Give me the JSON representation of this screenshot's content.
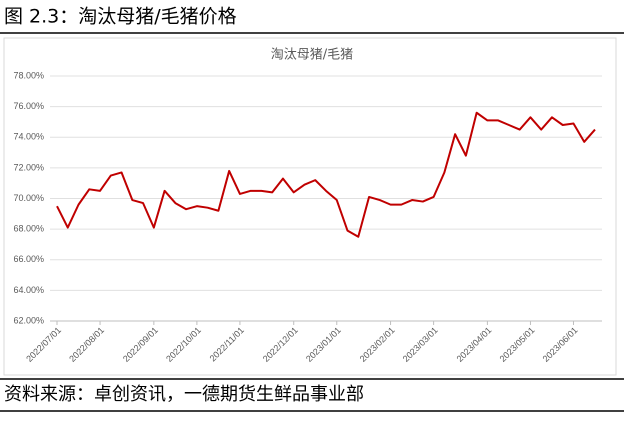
{
  "caption": "图 2.3：淘汰母猪/毛猪价格",
  "source": "资料来源：卓创资讯，一德期货生鲜品事业部",
  "chart_data": {
    "type": "line",
    "title": "淘汰母猪/毛猪",
    "categories": [
      "2022/07/01",
      null,
      null,
      null,
      "2022/08/01",
      null,
      null,
      null,
      null,
      "2022/09/01",
      null,
      null,
      null,
      "2022/10/01",
      null,
      null,
      null,
      "2022/11/01",
      null,
      null,
      null,
      null,
      "2022/12/01",
      null,
      null,
      null,
      "2023/01/01",
      null,
      null,
      null,
      null,
      "2023/02/01",
      null,
      null,
      null,
      "2023/03/01",
      null,
      null,
      null,
      null,
      "2023/04/01",
      null,
      null,
      null,
      "2023/05/01",
      null,
      null,
      null,
      "2023/06/01",
      null,
      null
    ],
    "values": [
      69.5,
      68.1,
      69.6,
      70.6,
      70.5,
      71.5,
      71.7,
      69.9,
      69.7,
      68.1,
      70.5,
      69.7,
      69.3,
      69.5,
      69.4,
      69.2,
      71.8,
      70.3,
      70.5,
      70.5,
      70.4,
      71.3,
      70.4,
      70.9,
      71.2,
      70.5,
      69.9,
      67.9,
      67.5,
      70.1,
      69.9,
      69.6,
      69.6,
      69.9,
      69.8,
      70.1,
      71.7,
      74.2,
      72.8,
      75.6,
      75.1,
      75.1,
      74.8,
      74.5,
      75.3,
      74.5,
      75.3,
      74.8,
      74.9,
      73.7,
      74.5
    ],
    "color": "#c00000",
    "ylim": [
      62,
      78
    ],
    "yticks": [
      {
        "value": 62,
        "label": "62.00%"
      },
      {
        "value": 64,
        "label": "64.00%"
      },
      {
        "value": 66,
        "label": "66.00%"
      },
      {
        "value": 68,
        "label": "68.00%"
      },
      {
        "value": 70,
        "label": "70.00%"
      },
      {
        "value": 72,
        "label": "72.00%"
      },
      {
        "value": 74,
        "label": "74.00%"
      },
      {
        "value": 76,
        "label": "76.00%"
      },
      {
        "value": 78,
        "label": "78.00%"
      }
    ],
    "grid": true
  }
}
